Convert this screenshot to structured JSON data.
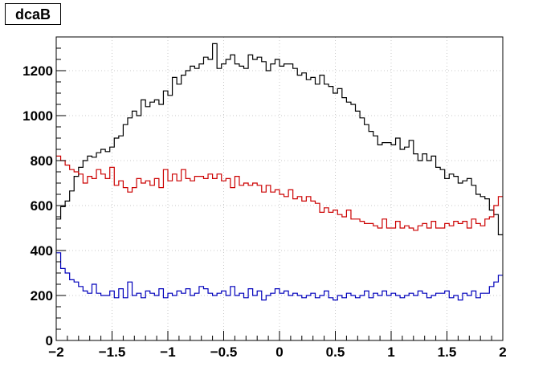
{
  "chart_data": {
    "type": "line",
    "title": "dcaB",
    "xlabel": "",
    "ylabel": "",
    "xlim": [
      -2,
      2
    ],
    "ylim": [
      0,
      1350
    ],
    "grid": true,
    "x_ticks": [
      "−2",
      "−1.5",
      "−1",
      "−0.5",
      "0",
      "0.5",
      "1",
      "1.5",
      "2"
    ],
    "x_tick_values": [
      -2,
      -1.5,
      -1,
      -0.5,
      0,
      0.5,
      1,
      1.5,
      2
    ],
    "y_ticks": [
      "0",
      "200",
      "400",
      "600",
      "800",
      "1000",
      "1200"
    ],
    "y_tick_values": [
      0,
      200,
      400,
      600,
      800,
      1000,
      1200
    ],
    "bin_edges_range": [
      -2,
      2
    ],
    "n_bins": 100,
    "series": [
      {
        "color": "#000000",
        "values": [
          540,
          595,
          620,
          665,
          730,
          770,
          800,
          820,
          815,
          835,
          850,
          840,
          860,
          900,
          910,
          960,
          990,
          1020,
          1000,
          1070,
          1040,
          1060,
          1070,
          1050,
          1110,
          1090,
          1170,
          1140,
          1180,
          1200,
          1220,
          1210,
          1230,
          1260,
          1250,
          1320,
          1210,
          1230,
          1250,
          1270,
          1230,
          1220,
          1210,
          1270,
          1250,
          1260,
          1240,
          1200,
          1230,
          1250,
          1220,
          1230,
          1230,
          1210,
          1180,
          1190,
          1160,
          1170,
          1140,
          1180,
          1140,
          1130,
          1100,
          1120,
          1080,
          1060,
          1050,
          1020,
          990,
          960,
          930,
          910,
          870,
          880,
          880,
          870,
          900,
          850,
          860,
          890,
          830,
          800,
          830,
          800,
          820,
          770,
          760,
          720,
          740,
          730,
          700,
          710,
          720,
          690,
          650,
          640,
          630,
          580,
          560,
          470
        ]
      },
      {
        "color": "#cc0000",
        "values": [
          820,
          800,
          780,
          760,
          750,
          740,
          700,
          730,
          720,
          760,
          740,
          720,
          770,
          690,
          710,
          680,
          660,
          680,
          720,
          700,
          710,
          690,
          720,
          680,
          760,
          710,
          740,
          710,
          760,
          720,
          710,
          730,
          730,
          720,
          740,
          720,
          740,
          710,
          720,
          680,
          730,
          690,
          700,
          690,
          700,
          690,
          660,
          690,
          660,
          670,
          650,
          640,
          670,
          630,
          640,
          620,
          640,
          620,
          610,
          570,
          590,
          570,
          580,
          560,
          550,
          580,
          540,
          540,
          530,
          520,
          520,
          510,
          500,
          540,
          500,
          500,
          530,
          500,
          510,
          500,
          490,
          510,
          520,
          500,
          530,
          500,
          500,
          520,
          510,
          530,
          520,
          530,
          500,
          540,
          520,
          510,
          540,
          550,
          600,
          640
        ]
      },
      {
        "color": "#0000bb",
        "values": [
          390,
          320,
          300,
          270,
          260,
          240,
          220,
          210,
          250,
          210,
          200,
          200,
          220,
          190,
          230,
          190,
          260,
          200,
          210,
          190,
          220,
          210,
          200,
          230,
          190,
          210,
          200,
          220,
          210,
          230,
          200,
          210,
          240,
          230,
          210,
          200,
          210,
          220,
          200,
          240,
          200,
          210,
          190,
          230,
          200,
          220,
          180,
          200,
          210,
          230,
          210,
          220,
          200,
          210,
          200,
          190,
          200,
          210,
          190,
          200,
          220,
          190,
          180,
          200,
          190,
          210,
          200,
          190,
          200,
          220,
          190,
          210,
          200,
          220,
          200,
          210,
          200,
          190,
          200,
          210,
          200,
          220,
          210,
          190,
          200,
          210,
          210,
          220,
          190,
          200,
          180,
          210,
          200,
          220,
          190,
          210,
          210,
          240,
          260,
          290
        ]
      }
    ]
  }
}
